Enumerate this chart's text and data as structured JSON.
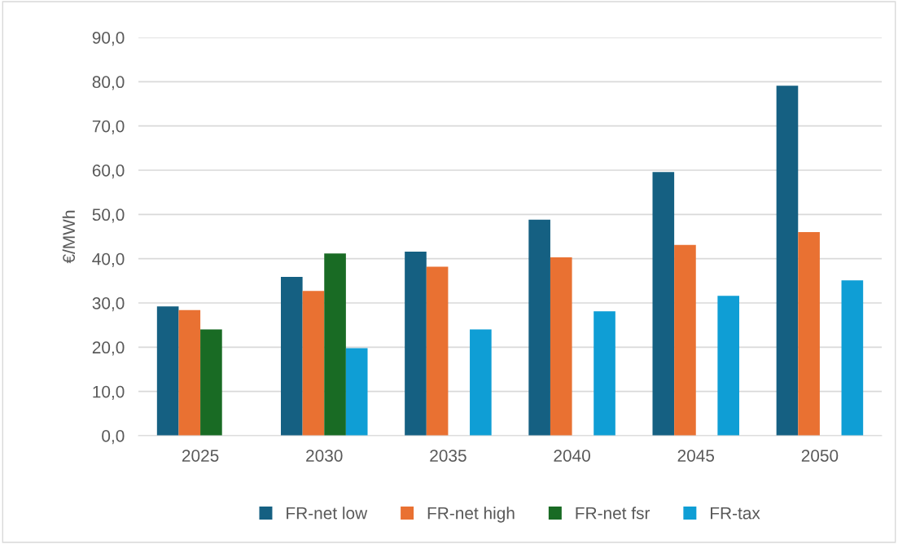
{
  "chart_data": {
    "type": "bar",
    "ylabel": "€/MWh",
    "categories": [
      "2025",
      "2030",
      "2035",
      "2040",
      "2045",
      "2050"
    ],
    "series": [
      {
        "name": "FR-net low",
        "color": "#156082",
        "values": [
          29.2,
          35.9,
          41.6,
          48.8,
          59.6,
          79.1
        ]
      },
      {
        "name": "FR-net high",
        "color": "#e97132",
        "values": [
          28.4,
          32.7,
          38.2,
          40.3,
          43.1,
          46.0
        ]
      },
      {
        "name": "FR-net fsr",
        "color": "#196b24",
        "values": [
          24.0,
          41.2,
          null,
          null,
          null,
          null
        ]
      },
      {
        "name": "FR-tax",
        "color": "#0f9ed5",
        "values": [
          null,
          19.8,
          24.0,
          28.1,
          31.6,
          35.1
        ]
      }
    ],
    "ylim": [
      0,
      90
    ],
    "yticks": [
      {
        "value": 0,
        "label": "0,0"
      },
      {
        "value": 10,
        "label": "10,0"
      },
      {
        "value": 20,
        "label": "20,0"
      },
      {
        "value": 30,
        "label": "30,0"
      },
      {
        "value": 40,
        "label": "40,0"
      },
      {
        "value": 50,
        "label": "50,0"
      },
      {
        "value": 60,
        "label": "60,0"
      },
      {
        "value": 70,
        "label": "70,0"
      },
      {
        "value": 80,
        "label": "80,0"
      },
      {
        "value": 90,
        "label": "90,0"
      }
    ],
    "grid": "y",
    "legend": "bottom"
  }
}
